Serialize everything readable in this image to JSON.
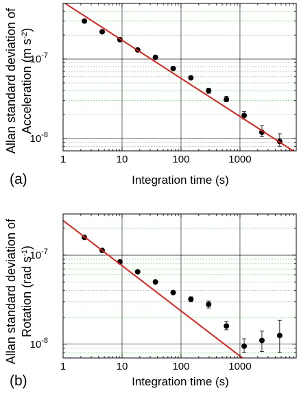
{
  "chart_data": [
    {
      "type": "scatter",
      "panel_label": "(a)",
      "ylabel_line1": "Allan standard deviation of",
      "ylabel_line2": "Acceleration (m s",
      "ylabel_sup": "-2",
      "ylabel_end": ")",
      "xlabel": "Integration time (s)",
      "xscale": "log",
      "yscale": "log",
      "xlim": [
        1,
        9000
      ],
      "ylim": [
        7e-09,
        5e-07
      ],
      "x_ticks": [
        {
          "v": 1,
          "label": "1"
        },
        {
          "v": 10,
          "label": "10"
        },
        {
          "v": 100,
          "label": "100"
        },
        {
          "v": 1000,
          "label": "1000"
        }
      ],
      "y_ticks": [
        {
          "v": 1e-07,
          "base": "10",
          "exp": "-7"
        },
        {
          "v": 1e-08,
          "base": "10",
          "exp": "-8"
        }
      ],
      "grid": true,
      "series": [
        {
          "kind": "points",
          "x": [
            2.3,
            4.6,
            9.2,
            18.4,
            36.8,
            73.6,
            147,
            294,
            589,
            1178,
            2355,
            4710
          ],
          "y": [
            3e-07,
            2.2e-07,
            1.75e-07,
            1.3e-07,
            1.05e-07,
            7.6e-08,
            5.8e-08,
            4e-08,
            3.1e-08,
            1.95e-08,
            1.2e-08,
            9.2e-09
          ],
          "yerr_low": [
            null,
            null,
            null,
            null,
            null,
            null,
            null,
            3.7e-08,
            2.9e-08,
            1.75e-08,
            1.05e-08,
            8e-09
          ],
          "yerr_high": [
            null,
            null,
            null,
            null,
            null,
            null,
            null,
            4.3e-08,
            3.4e-08,
            2.2e-08,
            1.45e-08,
            1.15e-08
          ]
        },
        {
          "kind": "fit-line",
          "x": [
            1,
            9000
          ],
          "y": [
            5.2e-07,
            6.6e-09
          ]
        }
      ]
    },
    {
      "type": "scatter",
      "panel_label": "(b)",
      "ylabel_line1": "Allan standard deviation of",
      "ylabel_line2": "Rotation (rad s",
      "ylabel_sup": "-1",
      "ylabel_end": ")",
      "xlabel": "Integration time (s)",
      "xscale": "log",
      "yscale": "log",
      "xlim": [
        1,
        9000
      ],
      "ylim": [
        7e-09,
        2.9e-07
      ],
      "x_ticks": [
        {
          "v": 1,
          "label": "1"
        },
        {
          "v": 10,
          "label": "10"
        },
        {
          "v": 100,
          "label": "100"
        },
        {
          "v": 1000,
          "label": "1000"
        }
      ],
      "y_ticks": [
        {
          "v": 1e-07,
          "base": "10",
          "exp": "-7"
        },
        {
          "v": 1e-08,
          "base": "10",
          "exp": "-8"
        }
      ],
      "grid": true,
      "series": [
        {
          "kind": "points",
          "x": [
            2.3,
            4.6,
            9.2,
            18.4,
            36.8,
            73.6,
            147,
            294,
            589,
            1178,
            2355,
            4710
          ],
          "y": [
            1.58e-07,
            1.13e-07,
            8.4e-08,
            6.5e-08,
            5e-08,
            3.8e-08,
            3.2e-08,
            2.8e-08,
            1.6e-08,
            9.5e-09,
            1.1e-08,
            1.25e-08
          ],
          "yerr_low": [
            null,
            null,
            null,
            null,
            null,
            null,
            3e-08,
            2.55e-08,
            1.45e-08,
            8e-09,
            8.3e-09,
            8e-09
          ],
          "yerr_high": [
            null,
            null,
            null,
            null,
            null,
            null,
            3.4e-08,
            3.05e-08,
            1.8e-08,
            1.15e-08,
            1.4e-08,
            1.85e-08
          ]
        },
        {
          "kind": "fit-line",
          "x": [
            1,
            1100
          ],
          "y": [
            2.45e-07,
            7e-09
          ]
        }
      ]
    }
  ]
}
